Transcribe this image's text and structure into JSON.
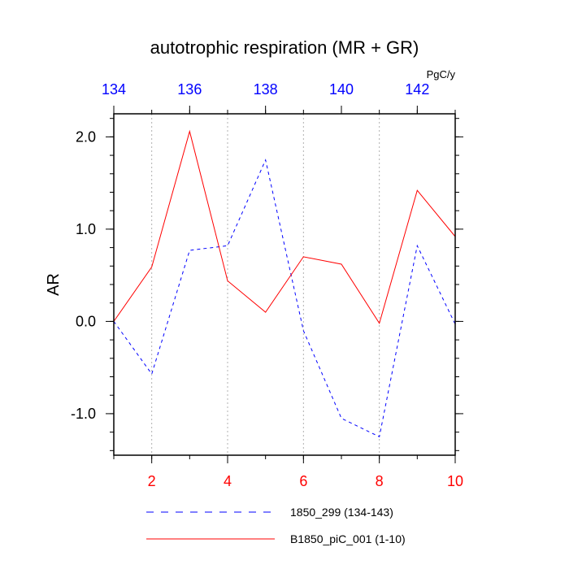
{
  "chart_data": {
    "type": "line",
    "title": "autotrophic respiration (MR + GR)",
    "ylabel": "AR",
    "units": "PgC/y",
    "x_bottom": {
      "range": [
        1,
        10
      ],
      "tick_values": [
        2,
        4,
        6,
        8,
        10
      ],
      "tick_labels": [
        "2",
        "4",
        "6",
        "8",
        "10"
      ],
      "color": "#ff0000"
    },
    "x_top": {
      "range": [
        134,
        143
      ],
      "tick_values": [
        134,
        136,
        138,
        140,
        142
      ],
      "tick_labels": [
        "134",
        "136",
        "138",
        "140",
        "142"
      ],
      "color": "#0000ff"
    },
    "y": {
      "range": [
        -1.45,
        2.25
      ],
      "tick_values": [
        -1.0,
        0.0,
        1.0,
        2.0
      ],
      "tick_labels": [
        "-1.0",
        "0.0",
        "1.0",
        "2.0"
      ]
    },
    "grid": "vertical dotted at even bottom-axis ticks",
    "legend_position": "bottom",
    "series": [
      {
        "name": "1850_299 (134-143)",
        "axis": "top",
        "color": "#0000ff",
        "dash": "dashed",
        "x": [
          134,
          135,
          136,
          137,
          138,
          139,
          140,
          141,
          142,
          143
        ],
        "values": [
          0.0,
          -0.57,
          0.77,
          0.82,
          1.75,
          -0.1,
          -1.05,
          -1.25,
          0.82,
          -0.03
        ]
      },
      {
        "name": "B1850_piC_001 (1-10)",
        "axis": "bottom",
        "color": "#ff0000",
        "dash": "solid",
        "x": [
          1,
          2,
          3,
          4,
          5,
          6,
          7,
          8,
          9,
          10
        ],
        "values": [
          0.0,
          0.59,
          2.06,
          0.44,
          0.1,
          0.7,
          0.62,
          -0.02,
          1.42,
          0.92
        ]
      }
    ]
  }
}
